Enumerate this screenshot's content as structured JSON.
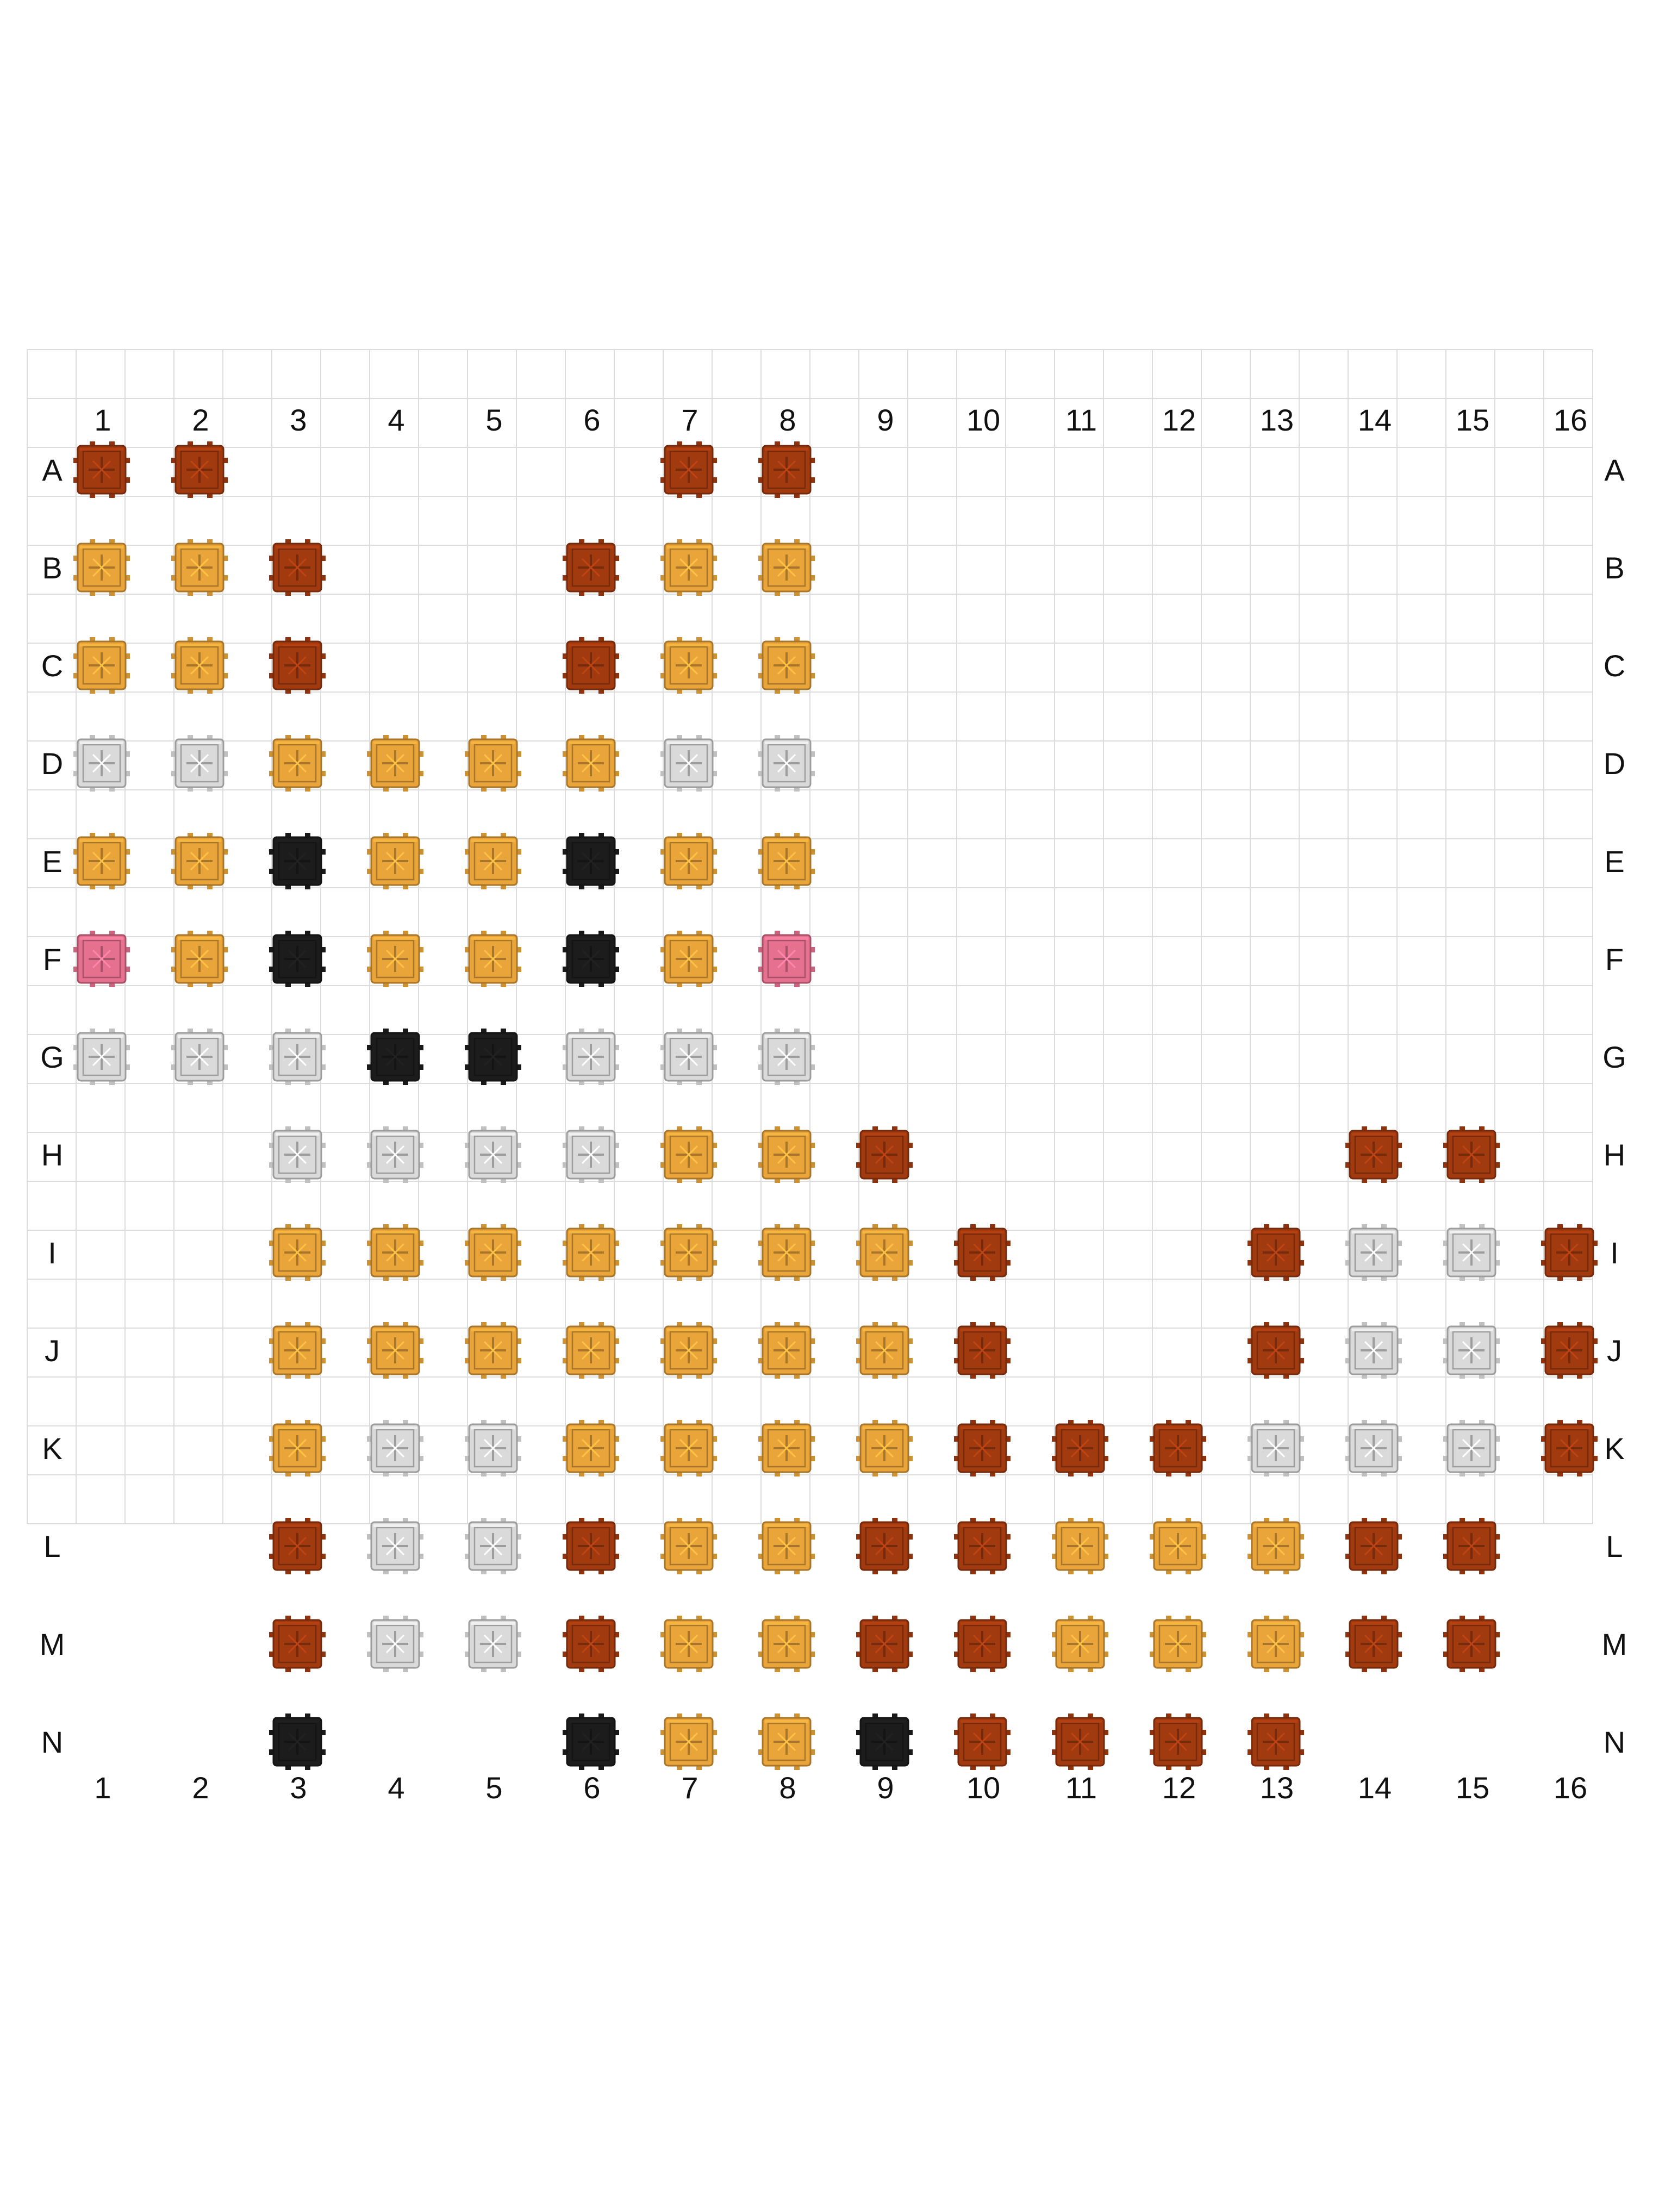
{
  "columns": [
    "1",
    "2",
    "3",
    "4",
    "5",
    "6",
    "7",
    "8",
    "9",
    "10",
    "11",
    "12",
    "13",
    "14",
    "15",
    "16"
  ],
  "rows": [
    "A",
    "B",
    "C",
    "D",
    "E",
    "F",
    "G",
    "H",
    "I",
    "J",
    "K",
    "L",
    "M",
    "N"
  ],
  "colors": {
    "O": "#E9A43A",
    "R": "#A23A10",
    "W": "#DADADA",
    "K": "#1C1C1C",
    "P": "#E6718F"
  },
  "pattern": [
    "RR....RR........",
    "OOR..ROO........",
    "OOR..ROO........",
    "WWOOOOWW........",
    "OOKOOKOO........",
    "POKOOKOP........",
    "WWWKKWWW........",
    "..WWWWOOR....RR.",
    "..OOOOOOOR..RWWR",
    "..OOOOOOOR..RWWR",
    "..OWWOOOORRRWWWR",
    "..RWWROORROOORR.",
    "..RWWROORROOORR.",
    "..K..KOOKRRRR..."
  ]
}
